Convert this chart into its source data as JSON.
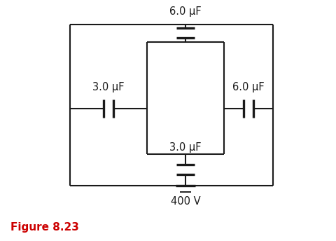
{
  "bg_color": "#ffffff",
  "figure_label": "Figure 8.23",
  "figure_label_color": "#cc0000",
  "voltage_label": "400 V",
  "cap_labels": [
    "6.0 μF",
    "3.0 μF",
    "6.0 μF",
    "3.0 μF"
  ],
  "line_color": "#1a1a1a",
  "line_width": 1.5,
  "text_color": "#1a1a1a",
  "font_size": 10.5,
  "fig_label_fontsize": 11
}
